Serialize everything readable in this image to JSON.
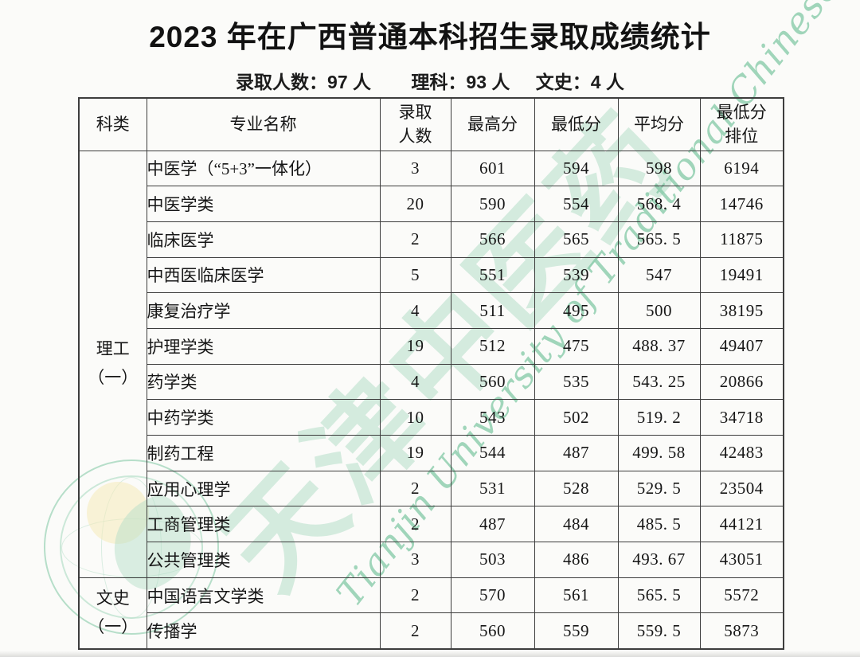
{
  "page": {
    "title": "2023 年在广西普通本科招生录取成绩统计",
    "summary": {
      "total": "录取人数：97 人",
      "science": "理科：93 人",
      "liberal_arts": "文史：4 人"
    }
  },
  "table": {
    "headers": [
      "科类",
      "专业名称",
      "录取\n人数",
      "最高分",
      "最低分",
      "平均分",
      "最低分\n排位"
    ],
    "groups": [
      {
        "category": "理工\n（一）",
        "rows": [
          {
            "major": "中医学（“5+3”一体化）",
            "admitted": "3",
            "max": "601",
            "min": "594",
            "avg": "598",
            "min_rank": "6194"
          },
          {
            "major": "中医学类",
            "admitted": "20",
            "max": "590",
            "min": "554",
            "avg": "568. 4",
            "min_rank": "14746"
          },
          {
            "major": "临床医学",
            "admitted": "2",
            "max": "566",
            "min": "565",
            "avg": "565. 5",
            "min_rank": "11875"
          },
          {
            "major": "中西医临床医学",
            "admitted": "5",
            "max": "551",
            "min": "539",
            "avg": "547",
            "min_rank": "19491"
          },
          {
            "major": "康复治疗学",
            "admitted": "4",
            "max": "511",
            "min": "495",
            "avg": "500",
            "min_rank": "38195"
          },
          {
            "major": "护理学类",
            "admitted": "19",
            "max": "512",
            "min": "475",
            "avg": "488. 37",
            "min_rank": "49407"
          },
          {
            "major": "药学类",
            "admitted": "4",
            "max": "560",
            "min": "535",
            "avg": "543. 25",
            "min_rank": "20866"
          },
          {
            "major": "中药学类",
            "admitted": "10",
            "max": "543",
            "min": "502",
            "avg": "519. 2",
            "min_rank": "34718"
          },
          {
            "major": "制药工程",
            "admitted": "19",
            "max": "544",
            "min": "487",
            "avg": "499. 58",
            "min_rank": "42483"
          },
          {
            "major": "应用心理学",
            "admitted": "2",
            "max": "531",
            "min": "528",
            "avg": "529. 5",
            "min_rank": "23504"
          },
          {
            "major": "工商管理类",
            "admitted": "2",
            "max": "487",
            "min": "484",
            "avg": "485. 5",
            "min_rank": "44121"
          },
          {
            "major": "公共管理类",
            "admitted": "3",
            "max": "503",
            "min": "486",
            "avg": "493. 67",
            "min_rank": "43051"
          }
        ]
      },
      {
        "category": "文史\n（一）",
        "rows": [
          {
            "major": "中国语言文学类",
            "admitted": "2",
            "max": "570",
            "min": "561",
            "avg": "565. 5",
            "min_rank": "5572"
          },
          {
            "major": "传播学",
            "admitted": "2",
            "max": "560",
            "min": "559",
            "avg": "559. 5",
            "min_rank": "5873"
          }
        ]
      }
    ]
  },
  "watermark": {
    "english_text": "Tianjin University of Traditional Chinese Med",
    "chinese_text": "天津中医药"
  },
  "colors": {
    "wm-green": "#7ec7a2",
    "border": "#3d3d3d",
    "text": "#1a1a1a",
    "seal-yellow": "#f3dc86"
  }
}
